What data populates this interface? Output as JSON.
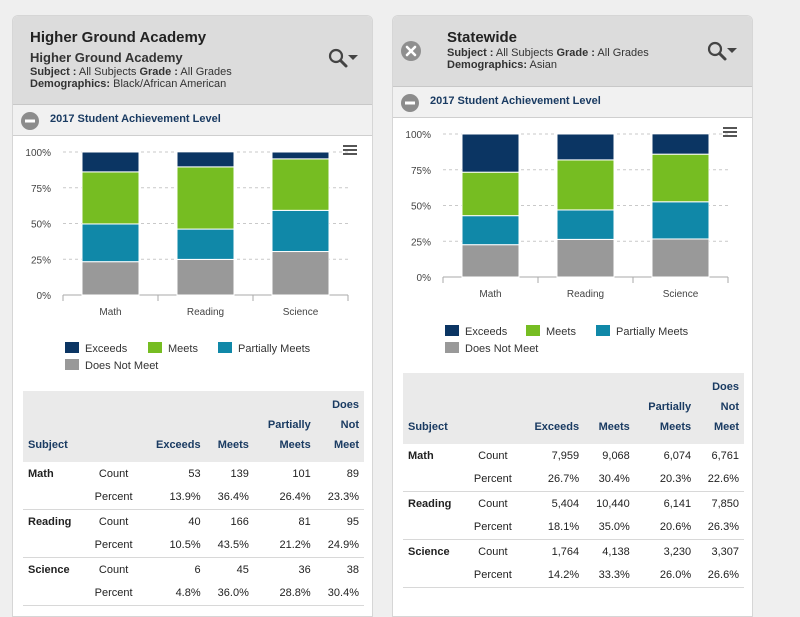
{
  "left": {
    "title": "Higher Ground Academy",
    "subtitle": "Higher Ground Academy",
    "subject_label": "Subject :",
    "subject_value": "All Subjects",
    "grade_label": "Grade :",
    "grade_value": "All Grades",
    "demographics_label": "Demographics:",
    "demographics_value": "Black/African American",
    "section_title": "2017 Student Achievement Level",
    "table": {
      "headers": {
        "subject": "Subject",
        "exceeds": "Exceeds",
        "meets": "Meets",
        "partially_1": "Partially",
        "partially_2": "Meets",
        "does_1": "Does",
        "does_2": "Not",
        "does_3": "Meet"
      },
      "rows": [
        {
          "subject": "Math",
          "count_label": "Count",
          "percent_label": "Percent",
          "count": [
            "53",
            "139",
            "101",
            "89"
          ],
          "percent": [
            "13.9%",
            "36.4%",
            "26.4%",
            "23.3%"
          ]
        },
        {
          "subject": "Reading",
          "count_label": "Count",
          "percent_label": "Percent",
          "count": [
            "40",
            "166",
            "81",
            "95"
          ],
          "percent": [
            "10.5%",
            "43.5%",
            "21.2%",
            "24.9%"
          ]
        },
        {
          "subject": "Science",
          "count_label": "Count",
          "percent_label": "Percent",
          "count": [
            "6",
            "45",
            "36",
            "38"
          ],
          "percent": [
            "4.8%",
            "36.0%",
            "28.8%",
            "30.4%"
          ]
        }
      ]
    }
  },
  "right": {
    "title": "Statewide",
    "subject_label": "Subject :",
    "subject_value": "All Subjects",
    "grade_label": "Grade :",
    "grade_value": "All Grades",
    "demographics_label": "Demographics:",
    "demographics_value": "Asian",
    "section_title": "2017 Student Achievement Level",
    "table": {
      "headers": {
        "subject": "Subject",
        "exceeds": "Exceeds",
        "meets": "Meets",
        "partially_1": "Partially",
        "partially_2": "Meets",
        "does_1": "Does",
        "does_2": "Not",
        "does_3": "Meet"
      },
      "rows": [
        {
          "subject": "Math",
          "count_label": "Count",
          "percent_label": "Percent",
          "count": [
            "7,959",
            "9,068",
            "6,074",
            "6,761"
          ],
          "percent": [
            "26.7%",
            "30.4%",
            "20.3%",
            "22.6%"
          ]
        },
        {
          "subject": "Reading",
          "count_label": "Count",
          "percent_label": "Percent",
          "count": [
            "5,404",
            "10,440",
            "6,141",
            "7,850"
          ],
          "percent": [
            "18.1%",
            "35.0%",
            "20.6%",
            "26.3%"
          ]
        },
        {
          "subject": "Science",
          "count_label": "Count",
          "percent_label": "Percent",
          "count": [
            "1,764",
            "4,138",
            "3,230",
            "3,307"
          ],
          "percent": [
            "14.2%",
            "33.3%",
            "26.0%",
            "26.6%"
          ]
        }
      ]
    }
  },
  "legend": {
    "exceeds": "Exceeds",
    "meets": "Meets",
    "partially": "Partially Meets",
    "does_not": "Does Not Meet"
  },
  "colors": {
    "exceeds": "#0b3563",
    "meets": "#76bd22",
    "partially": "#1088a8",
    "does_not": "#999999"
  },
  "chart_data": [
    {
      "type": "bar",
      "stacked": true,
      "title": "Higher Ground Academy",
      "categories": [
        "Math",
        "Reading",
        "Science"
      ],
      "series": [
        {
          "name": "Does Not Meet",
          "values": [
            23.3,
            24.9,
            30.4
          ]
        },
        {
          "name": "Partially Meets",
          "values": [
            26.4,
            21.2,
            28.8
          ]
        },
        {
          "name": "Meets",
          "values": [
            36.4,
            43.5,
            36.0
          ]
        },
        {
          "name": "Exceeds",
          "values": [
            13.9,
            10.5,
            4.8
          ]
        }
      ],
      "yticks": [
        "0%",
        "25%",
        "50%",
        "75%",
        "100%"
      ],
      "ylim": [
        0,
        100
      ],
      "legend": "bottom-left"
    },
    {
      "type": "bar",
      "stacked": true,
      "title": "Statewide",
      "categories": [
        "Math",
        "Reading",
        "Science"
      ],
      "series": [
        {
          "name": "Does Not Meet",
          "values": [
            22.6,
            26.3,
            26.6
          ]
        },
        {
          "name": "Partially Meets",
          "values": [
            20.3,
            20.6,
            26.0
          ]
        },
        {
          "name": "Meets",
          "values": [
            30.4,
            35.0,
            33.3
          ]
        },
        {
          "name": "Exceeds",
          "values": [
            26.7,
            18.1,
            14.2
          ]
        }
      ],
      "yticks": [
        "0%",
        "25%",
        "50%",
        "75%",
        "100%"
      ],
      "ylim": [
        0,
        100
      ],
      "legend": "bottom-left"
    }
  ]
}
